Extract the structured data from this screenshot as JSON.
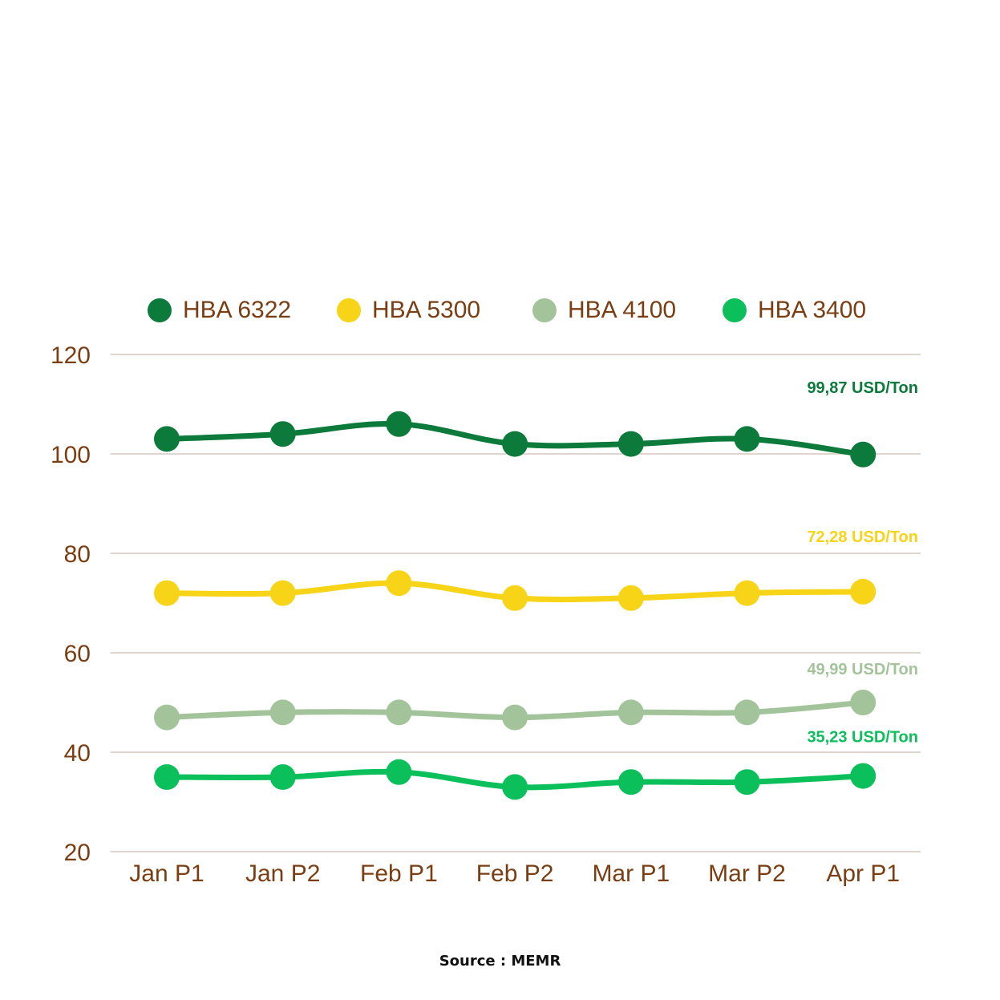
{
  "chart_data": {
    "type": "line",
    "categories": [
      "Jan P1",
      "Jan P2",
      "Feb P1",
      "Feb P2",
      "Mar P1",
      "Mar P2",
      "Apr P1"
    ],
    "series": [
      {
        "name": "HBA 6322",
        "color": "#0b7a3a",
        "values": [
          103,
          104,
          106,
          102,
          102,
          103,
          99.87
        ],
        "end_label": "99,87 USD/Ton"
      },
      {
        "name": "HBA 5300",
        "color": "#f7d417",
        "values": [
          72,
          72,
          74,
          71,
          71,
          72,
          72.28
        ],
        "end_label": "72,28 USD/Ton"
      },
      {
        "name": "HBA 4100",
        "color": "#a3c49b",
        "values": [
          47,
          48,
          48,
          47,
          48,
          48,
          49.99
        ],
        "end_label": "49,99 USD/Ton"
      },
      {
        "name": "HBA 3400",
        "color": "#0bbf5b",
        "values": [
          35,
          35,
          36,
          33,
          34,
          34,
          35.23
        ],
        "end_label": "35,23 USD/Ton"
      }
    ],
    "y_ticks": [
      20,
      40,
      60,
      80,
      100,
      120
    ],
    "ylim": [
      20,
      120
    ],
    "grid": true,
    "legend_position": "top",
    "colors": {
      "axis_text": "#7a3e12",
      "grid": "#d9c7bd"
    }
  },
  "source": "Source : MEMR"
}
